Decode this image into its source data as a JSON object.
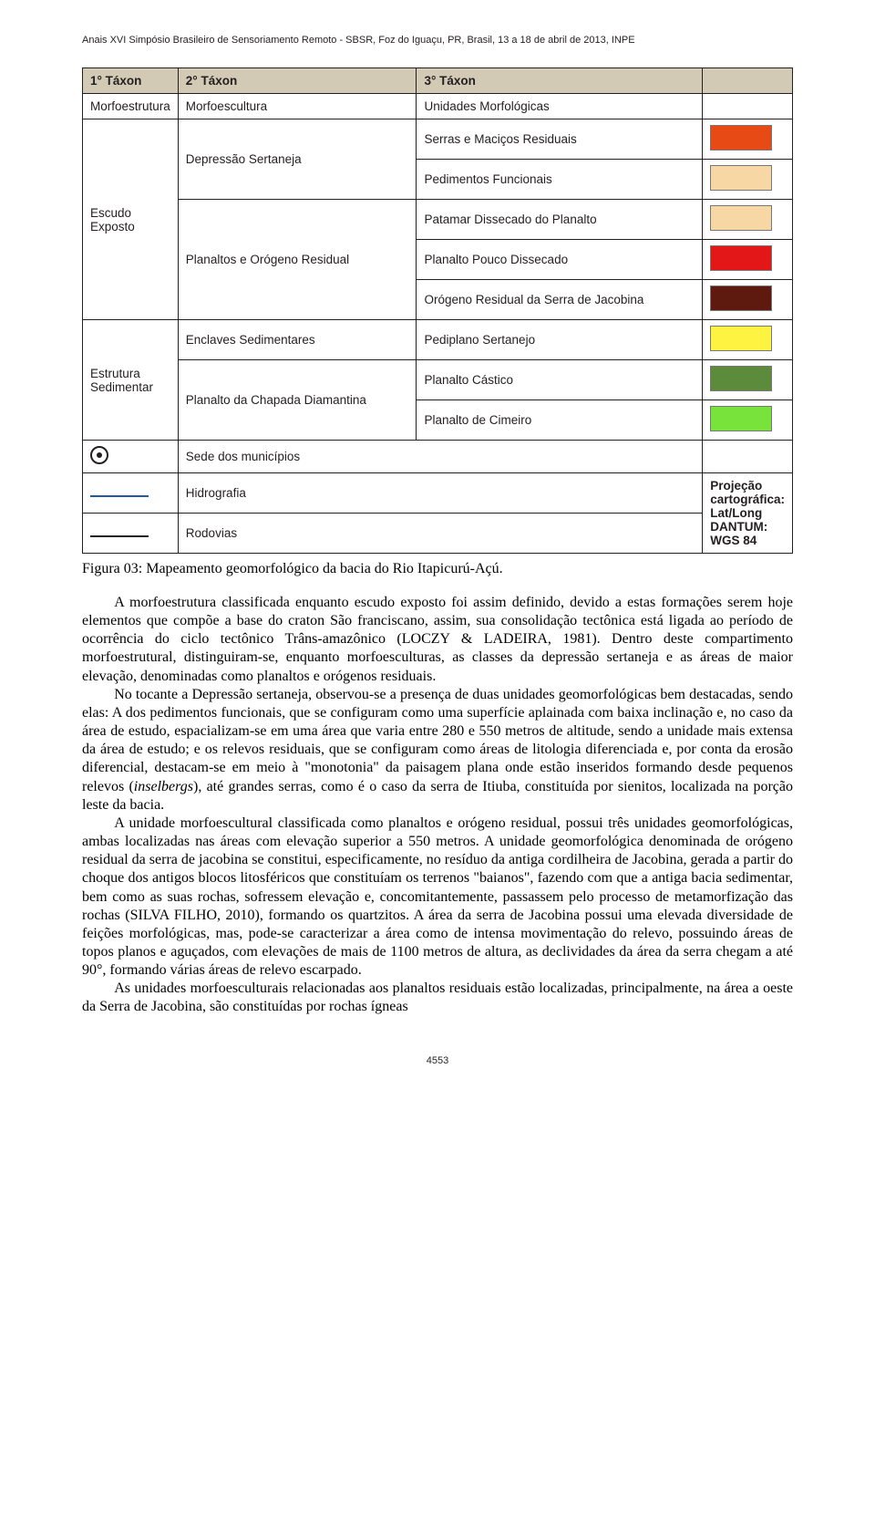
{
  "header": "Anais XVI Simpósio Brasileiro de Sensoriamento Remoto - SBSR, Foz do Iguaçu, PR, Brasil, 13 a 18 de abril de 2013, INPE",
  "table": {
    "head": {
      "c1": "1° Táxon",
      "c2": "2° Táxon",
      "c3": "3° Táxon"
    },
    "row_class": {
      "c1": "Morfoestrutura",
      "c2": "Morfoescultura",
      "c3": "Unidades Morfológicas"
    },
    "escudo": {
      "c1": "Escudo Exposto",
      "depressao": {
        "label": "Depressão Sertaneja",
        "u1": "Serras e Maciços Residuais",
        "color1": "#e84a16",
        "u2": "Pedimentos Funcionais",
        "color2": "#f7d7a4"
      },
      "planaltos": {
        "label": "Planaltos e Orógeno Residual",
        "u1": "Patamar Dissecado do Planalto",
        "color1": "#f7d7a4",
        "u2": "Planalto Pouco Dissecado",
        "color2": "#e31717",
        "u3": "Orógeno Residual da Serra de Jacobina",
        "color3": "#5e1a0f"
      }
    },
    "sedimentar": {
      "c1": "Estrutura Sedimentar",
      "enclaves": {
        "label": "Enclaves Sedimentares",
        "u1": "Pediplano Sertanejo",
        "color1": "#fff341"
      },
      "chapada": {
        "label": "Planalto da Chapada Diamantina",
        "u1": "Planalto Cástico",
        "color1": "#5b8b3b",
        "u2": "Planalto de Cimeiro",
        "color2": "#78e33a"
      }
    },
    "extras": {
      "sede": "Sede dos municípios",
      "hidro": "Hidrografia",
      "rod": "Rodovias",
      "proj_l1": "Projeção cartográfica: Lat/Long",
      "proj_l2": "DANTUM: WGS 84"
    }
  },
  "caption": "Figura 03: Mapeamento geomorfológico da bacia do Rio Itapicurú-Açú.",
  "paragraphs": {
    "p1": "A morfoestrutura classificada enquanto escudo exposto foi assim definido, devido a estas formações serem hoje elementos que compõe a base do craton São franciscano, assim, sua consolidação tectônica está ligada ao período de ocorrência do ciclo tectônico Trâns-amazônico (LOCZY & LADEIRA, 1981). Dentro deste compartimento morfoestrutural, distinguiram-se, enquanto morfoesculturas, as classes da depressão sertaneja e as áreas de maior elevação, denominadas como planaltos e orógenos residuais.",
    "p2a": "No tocante a Depressão sertaneja, observou-se a presença de duas unidades geomorfológicas bem destacadas, sendo elas: A dos pedimentos funcionais, que se configuram como uma superfície aplainada com baixa inclinação e, no caso da área de estudo, espacializam-se em uma área que varia entre 280 e 550 metros de altitude, sendo a unidade mais extensa da área de estudo; e os relevos residuais, que se configuram como áreas de litologia diferenciada e, por conta da erosão diferencial, destacam-se em meio à \"monotonia\" da paisagem plana onde estão inseridos formando desde pequenos relevos (",
    "p2b": "inselbergs",
    "p2c": "), até grandes serras, como é o caso da serra de Itiuba, constituída por sienitos, localizada na porção leste da bacia.",
    "p3": "A unidade morfoescultural classificada como planaltos e orógeno residual, possui três unidades geomorfológicas, ambas localizadas nas áreas com elevação superior a 550 metros. A unidade geomorfológica denominada de orógeno residual da serra de jacobina se constitui, especificamente, no resíduo da antiga cordilheira de Jacobina, gerada a partir do choque dos antigos blocos litosféricos que constituíam os terrenos \"baianos\", fazendo com que a antiga bacia sedimentar, bem como as suas rochas, sofressem elevação e, concomitantemente, passassem pelo processo de metamorfização das rochas (SILVA FILHO, 2010), formando os quartzitos. A área da serra de Jacobina possui uma elevada diversidade de feições morfológicas, mas, pode-se caracterizar a área como de intensa movimentação do relevo, possuindo áreas de topos planos e aguçados, com elevações de mais de 1100 metros de altura, as declividades da área da serra chegam a até 90°, formando várias áreas de relevo escarpado.",
    "p4": "As unidades morfoesculturais relacionadas aos planaltos residuais estão localizadas, principalmente, na área a oeste da Serra de Jacobina, são constituídas por rochas ígneas"
  },
  "pagenum": "4553"
}
